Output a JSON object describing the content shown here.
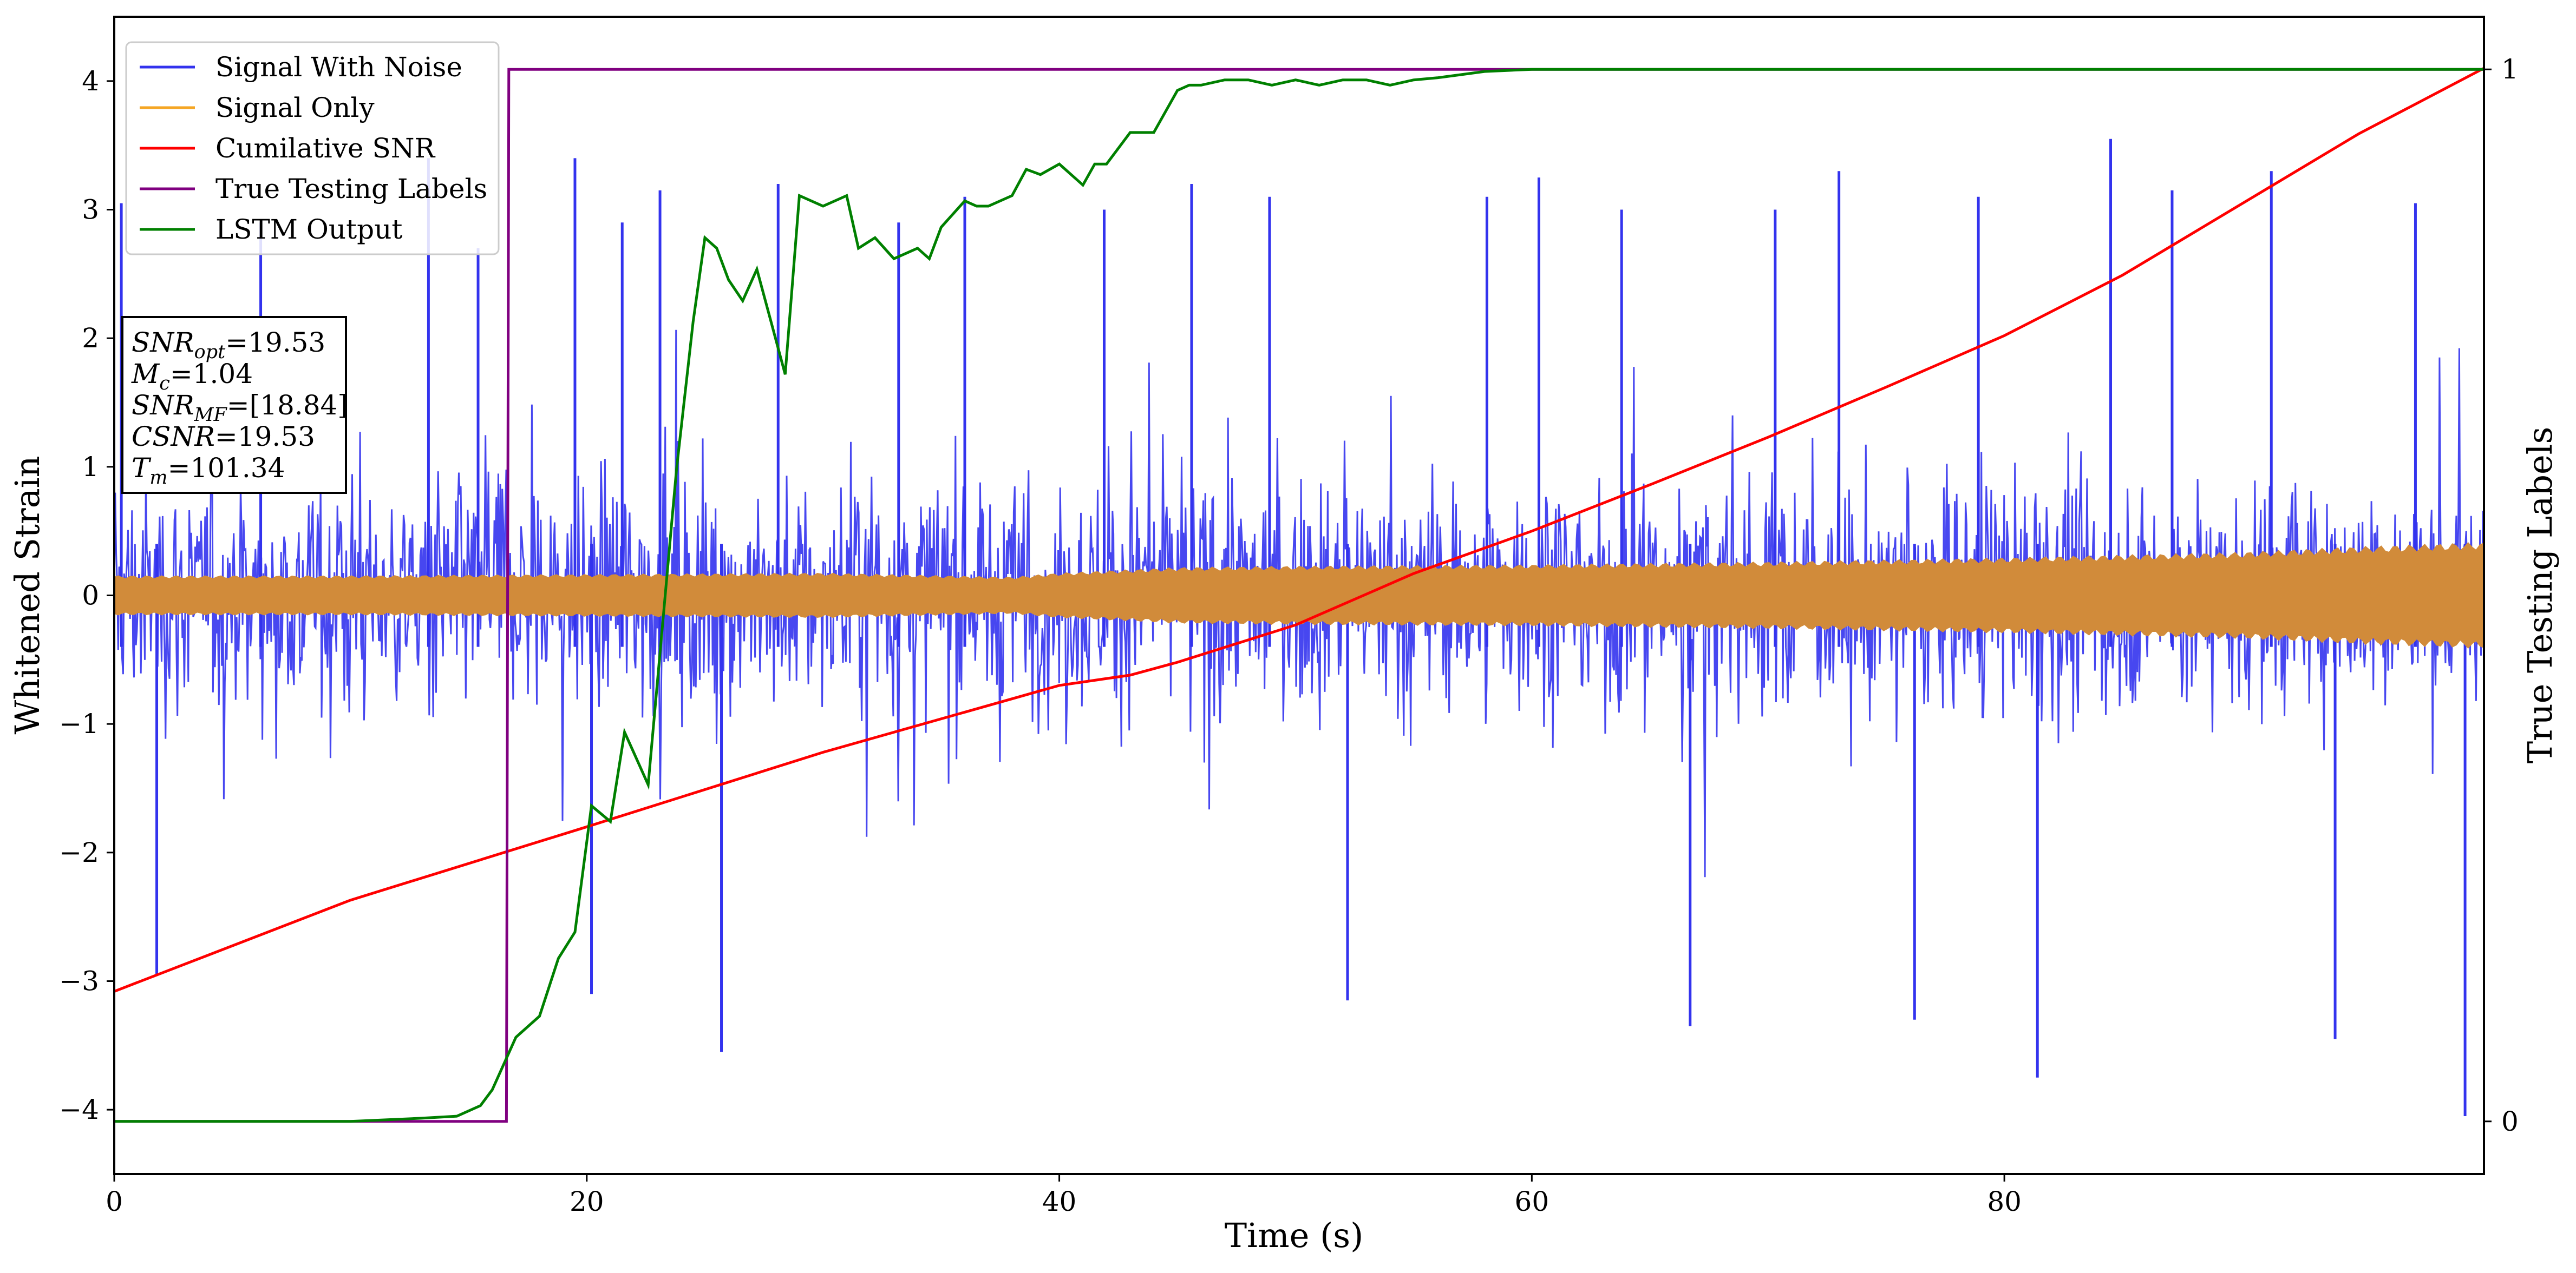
{
  "chart_data": {
    "type": "line",
    "xlabel": "Time (s)",
    "ylabel": "Whitened Strain",
    "ylabel_right": "True Testing Labels",
    "xlim": [
      0,
      100.3
    ],
    "ylim": [
      -4.5,
      4.5
    ],
    "ylim_right": [
      -0.05,
      1.05
    ],
    "x_ticks": [
      "0",
      "20",
      "40",
      "60",
      "80"
    ],
    "y_ticks": [
      "−4",
      "−3",
      "−2",
      "−1",
      "0",
      "1",
      "2",
      "3",
      "4"
    ],
    "y_ticks_right": [
      "0",
      "1"
    ],
    "grid": false,
    "legend_position": "top-left",
    "stats_box": [
      {
        "var": "SNR",
        "sub": "opt",
        "value": "=19.53"
      },
      {
        "var": "M",
        "sub": "c",
        "value": "=1.04"
      },
      {
        "var": "SNR",
        "sub": "MF",
        "value": "=[18.84]"
      },
      {
        "var": "CSNR",
        "sub": "",
        "value": "=19.53"
      },
      {
        "var": "T",
        "sub": "m",
        "value": "=101.34"
      }
    ],
    "series": [
      {
        "name": "Signal With Noise",
        "color": "#3333ee",
        "axis": "left",
        "kind": "noise",
        "envelope_note": "dense noise, mostly within ±1.5, spikes to about ±3.6",
        "spike_x": [
          0.3,
          1.8,
          6.2,
          13.3,
          15.4,
          19.5,
          20.2,
          21.5,
          23.1,
          25.7,
          28.1,
          33.2,
          36.0,
          41.9,
          45.6,
          48.9,
          52.2,
          58.1,
          60.3,
          63.8,
          66.7,
          70.3,
          73.0,
          76.2,
          78.9,
          81.4,
          84.5,
          87.1,
          91.3,
          94.0,
          97.4,
          99.5
        ],
        "spike_y": [
          3.05,
          -2.95,
          2.9,
          3.4,
          2.7,
          3.4,
          -3.1,
          2.9,
          3.15,
          -3.55,
          3.2,
          2.9,
          3.1,
          3.0,
          3.2,
          3.1,
          -3.15,
          3.1,
          3.25,
          3.0,
          -3.35,
          3.0,
          3.3,
          -3.3,
          3.1,
          -3.75,
          3.55,
          3.15,
          3.3,
          -3.45,
          3.05,
          -4.05
        ]
      },
      {
        "name": "Signal Only",
        "color": "#f5a623",
        "axis": "left",
        "kind": "envelope",
        "x": [
          0,
          10,
          20,
          30,
          38,
          40,
          45,
          50,
          60,
          70,
          80,
          90,
          95,
          100
        ],
        "amplitude": [
          0.14,
          0.14,
          0.15,
          0.16,
          0.13,
          0.16,
          0.2,
          0.21,
          0.22,
          0.24,
          0.27,
          0.31,
          0.35,
          0.38
        ]
      },
      {
        "name": "Cumilative SNR",
        "color": "#ff0000",
        "axis": "left",
        "x": [
          0,
          10,
          20,
          30,
          40,
          43,
          45,
          50,
          55,
          60,
          65,
          70,
          75,
          80,
          85,
          90,
          95,
          100.3
        ],
        "y": [
          -3.08,
          -2.37,
          -1.8,
          -1.22,
          -0.7,
          -0.62,
          -0.52,
          -0.23,
          0.17,
          0.5,
          0.86,
          1.23,
          1.62,
          2.02,
          2.49,
          3.04,
          3.59,
          4.1
        ]
      },
      {
        "name": "True Testing Labels",
        "color": "#800080",
        "axis": "right",
        "x": [
          0,
          16.6,
          16.7,
          17.0,
          100.3
        ],
        "y": [
          0,
          0,
          1,
          1,
          1
        ]
      },
      {
        "name": "LSTM Output",
        "color": "#008000",
        "axis": "right",
        "x": [
          0,
          10,
          13,
          14.5,
          15.5,
          16.0,
          17.0,
          18.0,
          18.8,
          19.5,
          20.2,
          21.0,
          21.6,
          22.0,
          22.6,
          23.2,
          23.8,
          24.5,
          25.0,
          25.5,
          26.0,
          26.6,
          27.2,
          27.8,
          28.4,
          29.0,
          30.0,
          31.0,
          31.5,
          32.2,
          33.0,
          34.0,
          34.5,
          35.0,
          36.0,
          36.5,
          37.0,
          38.0,
          38.6,
          39.2,
          40.0,
          41.0,
          41.5,
          42.0,
          43.0,
          44.0,
          45.0,
          45.5,
          46.0,
          47.0,
          48.0,
          49.0,
          50.0,
          51.0,
          52.0,
          53.0,
          54.0,
          55.0,
          56.0,
          57.0,
          58.0,
          60.0,
          65.0,
          70.0,
          80.0,
          90.0,
          100.3
        ],
        "y": [
          0.0,
          0.0,
          0.003,
          0.005,
          0.015,
          0.03,
          0.08,
          0.1,
          0.155,
          0.18,
          0.3,
          0.285,
          0.37,
          0.35,
          0.32,
          0.47,
          0.62,
          0.76,
          0.84,
          0.83,
          0.8,
          0.78,
          0.81,
          0.76,
          0.71,
          0.88,
          0.87,
          0.88,
          0.83,
          0.84,
          0.82,
          0.83,
          0.82,
          0.85,
          0.875,
          0.87,
          0.87,
          0.88,
          0.905,
          0.9,
          0.91,
          0.89,
          0.91,
          0.91,
          0.94,
          0.94,
          0.98,
          0.985,
          0.985,
          0.99,
          0.99,
          0.985,
          0.99,
          0.985,
          0.99,
          0.99,
          0.985,
          0.99,
          0.992,
          0.995,
          0.998,
          1.0,
          1.0,
          1.0,
          1.0,
          1.0,
          1.0
        ]
      }
    ]
  }
}
